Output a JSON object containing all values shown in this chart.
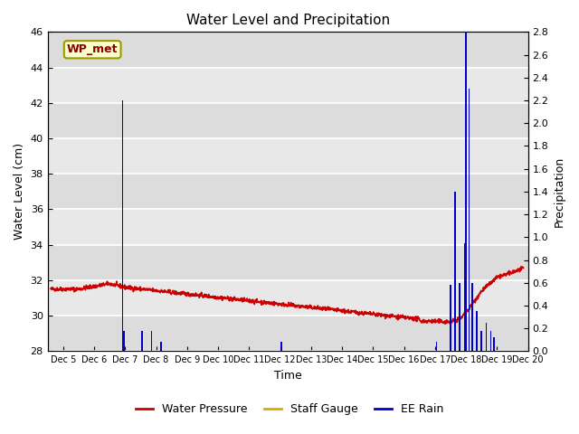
{
  "title": "Water Level and Precipitation",
  "xlabel": "Time",
  "ylabel_left": "Water Level (cm)",
  "ylabel_right": "Precipitation",
  "ylim_left": [
    28,
    46
  ],
  "ylim_right": [
    0.0,
    2.8
  ],
  "yticks_left": [
    28,
    30,
    32,
    34,
    36,
    38,
    40,
    42,
    44,
    46
  ],
  "yticks_right": [
    0.0,
    0.2,
    0.4,
    0.6,
    0.8,
    1.0,
    1.2,
    1.4,
    1.6,
    1.8,
    2.0,
    2.2,
    2.4,
    2.6,
    2.8
  ],
  "xtick_positions": [
    5,
    6,
    7,
    8,
    9,
    10,
    11,
    12,
    13,
    14,
    15,
    16,
    17,
    18,
    19,
    20
  ],
  "xtick_labels": [
    "Dec 5",
    "Dec 6",
    "Dec 7",
    "Dec 8",
    "Dec 9",
    "Dec 10",
    "Dec 11",
    "Dec 12",
    "Dec 13",
    "Dec 14",
    "Dec 15",
    "Dec 16",
    "Dec 17",
    "Dec 18",
    "Dec 19",
    "Dec 20"
  ],
  "xlim": [
    4.5,
    20.0
  ],
  "background_color": "#dcdcdc",
  "band_colors": [
    "#dcdcdc",
    "#e8e8e8"
  ],
  "grid_color": "#ffffff",
  "water_pressure_color": "#cc0000",
  "ee_rain_color": "#0000cc",
  "staff_gauge_color": "#ddaa00",
  "annotation_text": "WP_met",
  "annotation_bg": "#ffffcc",
  "annotation_border": "#999900",
  "annotation_text_color": "#880000",
  "rain_x": [
    6.92,
    6.97,
    7.55,
    7.85,
    8.15,
    12.05,
    17.05,
    17.5,
    17.65,
    17.8,
    17.95,
    18.0,
    18.1,
    18.2,
    18.35,
    18.5,
    18.65,
    18.8,
    18.9
  ],
  "rain_h": [
    2.2,
    0.18,
    0.18,
    0.18,
    0.08,
    0.08,
    0.08,
    0.58,
    1.4,
    0.6,
    0.95,
    2.8,
    2.3,
    0.6,
    0.35,
    0.18,
    0.25,
    0.18,
    0.12
  ],
  "bar_width": 0.05
}
